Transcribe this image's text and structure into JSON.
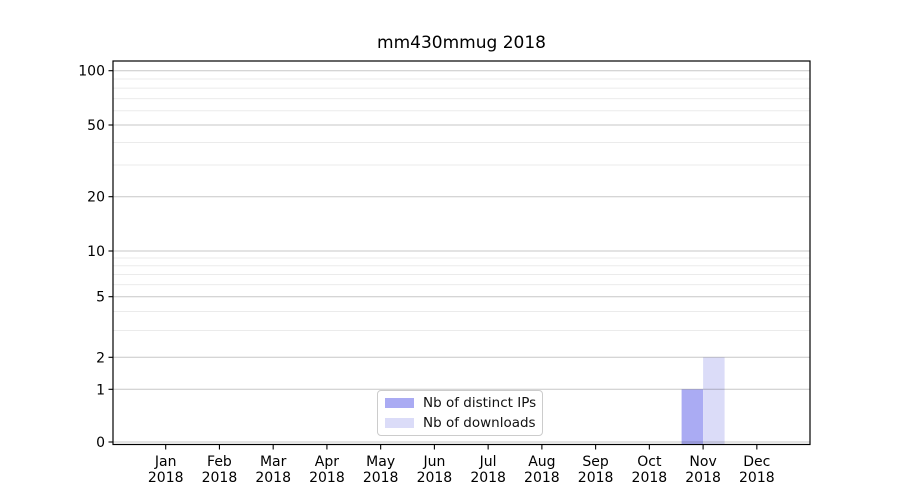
{
  "chart_data": {
    "type": "bar",
    "title": "mm430mmug 2018",
    "categories": [
      "Jan 2018",
      "Feb 2018",
      "Mar 2018",
      "Apr 2018",
      "May 2018",
      "Jun 2018",
      "Jul 2018",
      "Aug 2018",
      "Sep 2018",
      "Oct 2018",
      "Nov 2018",
      "Dec 2018"
    ],
    "series": [
      {
        "name": "Nb of distinct IPs",
        "color": "#aaabf3",
        "values": [
          0,
          0,
          0,
          0,
          0,
          0,
          0,
          0,
          0,
          0,
          1,
          0
        ]
      },
      {
        "name": "Nb of downloads",
        "color": "#dbdcf8",
        "values": [
          0,
          0,
          0,
          0,
          0,
          0,
          0,
          0,
          0,
          0,
          2,
          0
        ]
      }
    ],
    "xlabel": "",
    "ylabel": "",
    "yticks": [
      0,
      1,
      2,
      5,
      10,
      20,
      50,
      100
    ],
    "yscale": "symlog",
    "ylim": [
      0,
      113
    ],
    "grid": "horizontal major and minor",
    "legend_position": "lower center",
    "bar_layout": "pairs side-by-side centered on month tick"
  },
  "colors": {
    "background": "#ffffff",
    "axis": "#000000",
    "grid_major": "#c8c8c8",
    "grid_minor": "#ebebeb",
    "legend_border": "#cccccc",
    "text": "#000000"
  }
}
